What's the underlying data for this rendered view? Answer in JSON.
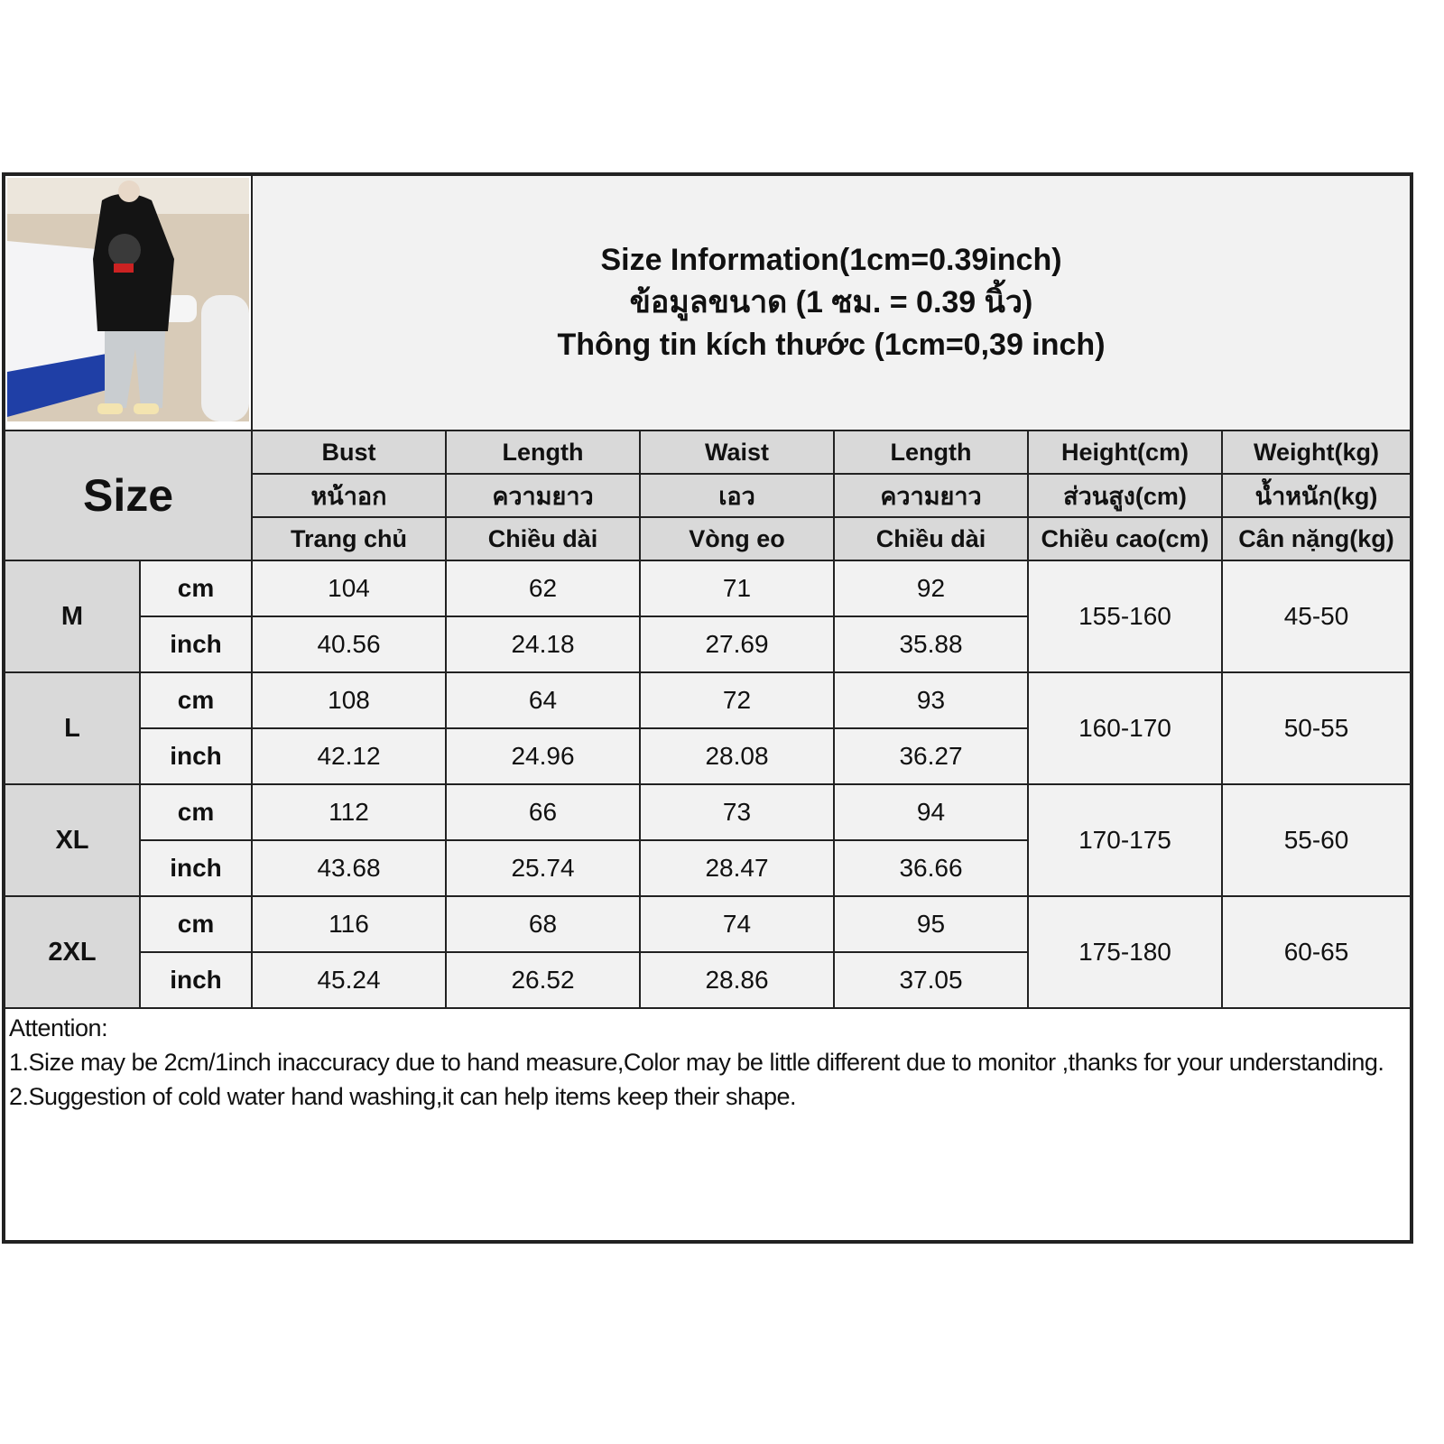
{
  "title_lines": [
    "Size Information(1cm=0.39inch)",
    "ข้อมูลขนาด (1 ซม. = 0.39 นิ้ว)",
    "Thông tin kích thước (1cm=0,39 inch)"
  ],
  "size_label": "Size",
  "columns": [
    {
      "en": "Bust",
      "th": "หน้าอก",
      "vi": "Trang chủ"
    },
    {
      "en": "Length",
      "th": "ความยาว",
      "vi": "Chiều dài"
    },
    {
      "en": "Waist",
      "th": "เอว",
      "vi": "Vòng eo"
    },
    {
      "en": "Length",
      "th": "ความยาว",
      "vi": "Chiều dài"
    },
    {
      "en": "Height(cm)",
      "th": "ส่วนสูง(cm)",
      "vi": "Chiều cao(cm)"
    },
    {
      "en": "Weight(kg)",
      "th": "น้ำหนัก(kg)",
      "vi": "Cân nặng(kg)"
    }
  ],
  "units": {
    "cm": "cm",
    "inch": "inch"
  },
  "rows": [
    {
      "size": "M",
      "cm": [
        "104",
        "62",
        "71",
        "92"
      ],
      "inch": [
        "40.56",
        "24.18",
        "27.69",
        "35.88"
      ],
      "height": "155-160",
      "weight": "45-50"
    },
    {
      "size": "L",
      "cm": [
        "108",
        "64",
        "72",
        "93"
      ],
      "inch": [
        "42.12",
        "24.96",
        "28.08",
        "36.27"
      ],
      "height": "160-170",
      "weight": "50-55"
    },
    {
      "size": "XL",
      "cm": [
        "112",
        "66",
        "73",
        "94"
      ],
      "inch": [
        "43.68",
        "25.74",
        "28.47",
        "36.66"
      ],
      "height": "170-175",
      "weight": "55-60"
    },
    {
      "size": "2XL",
      "cm": [
        "116",
        "68",
        "74",
        "95"
      ],
      "inch": [
        "45.24",
        "26.52",
        "28.86",
        "37.05"
      ],
      "height": "175-180",
      "weight": "60-65"
    }
  ],
  "notes": [
    "Attention:",
    "1.Size may be 2cm/1inch inaccuracy due to hand measure,Color may be little different due to monitor ,thanks for your understanding.",
    "2.Suggestion of cold water hand washing,it can help items keep their shape."
  ]
}
